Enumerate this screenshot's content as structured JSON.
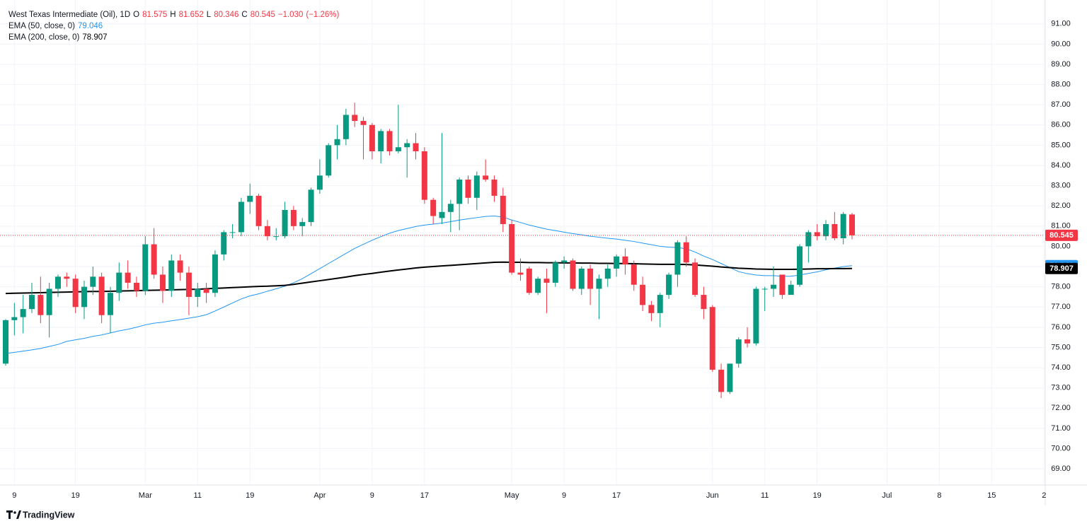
{
  "header": {
    "name": "West Texas Intermediate (Oil), 1D",
    "fields": [
      "O",
      "H",
      "L",
      "C"
    ],
    "change": {
      "value": -1.03,
      "label": "−1.030"
    },
    "change_pct": {
      "value": -1.26,
      "label": "(−1.26%)"
    }
  },
  "branding": "TradingView",
  "chart_data": {
    "type": "candlestick",
    "categories": [
      null,
      "9",
      null,
      null,
      null,
      null,
      null,
      null,
      "19",
      null,
      null,
      null,
      null,
      null,
      null,
      null,
      "Mar",
      null,
      null,
      null,
      null,
      null,
      "11",
      null,
      null,
      null,
      null,
      null,
      "19",
      null,
      null,
      null,
      null,
      null,
      null,
      null,
      "Apr",
      null,
      null,
      null,
      null,
      null,
      "9",
      null,
      null,
      null,
      null,
      null,
      "17",
      null,
      null,
      null,
      null,
      null,
      null,
      null,
      null,
      null,
      "May",
      null,
      null,
      null,
      null,
      null,
      "9",
      null,
      null,
      null,
      null,
      null,
      "17",
      null,
      null,
      null,
      null,
      null,
      null,
      null,
      null,
      null,
      null,
      "Jun",
      null,
      null,
      null,
      null,
      null,
      "11",
      null,
      null,
      null,
      null,
      null,
      "19",
      null,
      null,
      null,
      null,
      null,
      null,
      null,
      "Jul",
      null,
      null,
      null,
      null,
      null,
      "8",
      null,
      null,
      null,
      null,
      null,
      "15",
      null,
      null,
      null,
      null,
      null,
      "2"
    ],
    "open": [
      74.2,
      76.35,
      76.5,
      76.9,
      77.6,
      76.6,
      77.9,
      78.5,
      78.4,
      77.0,
      78.0,
      78.5,
      76.6,
      77.7,
      78.7,
      78.2,
      77.8,
      80.1,
      78.6,
      77.8,
      79.3,
      78.7,
      77.5,
      77.9,
      77.7,
      79.6,
      80.7,
      80.7,
      82.2,
      82.5,
      81.0,
      80.5,
      80.5,
      81.8,
      81.0,
      81.2,
      82.8,
      83.5,
      85.0,
      85.3,
      86.5,
      86.2,
      86.0,
      84.7,
      85.7,
      84.7,
      84.9,
      85.1,
      84.7,
      82.3,
      81.4,
      81.7,
      82.1,
      83.3,
      82.4,
      83.5,
      83.3,
      82.5,
      81.1,
      78.7,
      78.9,
      77.7,
      78.4,
      78.2,
      79.2,
      79.3,
      77.9,
      78.9,
      77.9,
      78.4,
      78.9,
      79.5,
      79.1,
      78.1,
      77.1,
      76.7,
      77.6,
      78.6,
      80.2,
      79.2,
      77.6,
      77.0,
      73.9,
      72.8,
      74.2,
      75.4,
      75.2,
      77.9,
      77.9,
      78.6,
      77.6,
      78.1,
      80.0,
      80.7,
      80.5,
      81.1,
      80.4,
      81.575,
      null,
      null,
      null,
      null,
      null,
      null,
      null,
      null,
      null,
      null,
      null,
      null,
      null,
      null,
      null,
      null,
      null,
      null,
      null,
      null,
      null,
      null
    ],
    "high": [
      76.4,
      77.2,
      77.6,
      78.2,
      78.5,
      78.2,
      78.6,
      78.7,
      78.6,
      78.3,
      79.0,
      78.7,
      78.0,
      79.2,
      79.3,
      78.5,
      80.5,
      80.9,
      79.0,
      79.6,
      79.6,
      79.0,
      78.2,
      78.2,
      79.8,
      80.8,
      81.1,
      82.4,
      83.1,
      82.6,
      81.3,
      80.9,
      82.2,
      82.0,
      81.4,
      82.9,
      84.3,
      85.1,
      86.0,
      86.8,
      87.1,
      86.4,
      86.1,
      85.8,
      85.8,
      87.0,
      85.3,
      85.6,
      84.9,
      82.4,
      85.6,
      82.3,
      83.4,
      83.5,
      83.7,
      84.3,
      83.5,
      82.9,
      81.3,
      79.4,
      79.0,
      78.5,
      78.9,
      79.3,
      79.5,
      79.4,
      79.0,
      79.1,
      78.6,
      79.1,
      79.6,
      79.9,
      79.3,
      78.5,
      77.3,
      77.7,
      78.7,
      80.3,
      80.5,
      79.4,
      78.0,
      77.1,
      74.2,
      74.2,
      75.5,
      76.0,
      78.0,
      78.0,
      79.0,
      78.6,
      78.3,
      80.1,
      80.8,
      81.1,
      81.3,
      81.7,
      81.7,
      81.652,
      null,
      null,
      null,
      null,
      null,
      null,
      null,
      null,
      null,
      null,
      null,
      null,
      null,
      null,
      null,
      null,
      null,
      null,
      null,
      null,
      null,
      null
    ],
    "low": [
      74.1,
      75.6,
      75.7,
      76.7,
      76.2,
      75.5,
      77.5,
      78.0,
      76.7,
      76.4,
      77.6,
      76.2,
      75.7,
      77.3,
      77.9,
      77.5,
      77.6,
      78.4,
      77.2,
      77.5,
      78.3,
      76.6,
      77.0,
      77.2,
      77.5,
      79.3,
      80.4,
      80.5,
      81.6,
      80.8,
      80.3,
      80.3,
      80.4,
      80.8,
      80.5,
      81.0,
      82.6,
      83.4,
      84.3,
      85.0,
      85.9,
      84.3,
      84.3,
      84.1,
      84.5,
      84.6,
      83.4,
      84.3,
      82.1,
      81.1,
      81.1,
      80.7,
      80.8,
      82.1,
      81.8,
      83.2,
      82.2,
      80.7,
      78.6,
      78.3,
      77.6,
      77.6,
      76.7,
      78.0,
      78.9,
      77.8,
      77.6,
      77.1,
      76.4,
      78.0,
      78.5,
      78.6,
      77.8,
      76.8,
      76.3,
      76.0,
      77.4,
      78.0,
      79.0,
      77.5,
      76.4,
      73.8,
      72.5,
      72.7,
      74.0,
      75.0,
      75.1,
      76.8,
      77.5,
      77.4,
      77.6,
      78.0,
      79.2,
      80.3,
      80.3,
      80.3,
      80.1,
      80.346,
      null,
      null,
      null,
      null,
      null,
      null,
      null,
      null,
      null,
      null,
      null,
      null,
      null,
      null,
      null,
      null,
      null,
      null,
      null,
      null,
      null,
      null
    ],
    "close": [
      76.35,
      76.5,
      76.9,
      77.6,
      76.6,
      77.9,
      78.5,
      78.4,
      77.0,
      78.0,
      78.5,
      76.6,
      77.7,
      78.7,
      78.2,
      77.8,
      80.1,
      78.6,
      77.8,
      79.3,
      78.7,
      77.5,
      77.9,
      77.7,
      79.6,
      80.7,
      80.7,
      82.2,
      82.5,
      81.0,
      80.5,
      80.5,
      81.8,
      81.0,
      81.2,
      82.8,
      83.5,
      85.0,
      85.3,
      86.5,
      86.2,
      86.0,
      84.7,
      85.7,
      84.7,
      84.9,
      85.1,
      84.7,
      82.3,
      81.5,
      81.7,
      82.1,
      83.3,
      82.4,
      83.5,
      83.3,
      82.5,
      81.1,
      78.7,
      78.6,
      77.7,
      78.4,
      78.2,
      79.2,
      79.3,
      77.9,
      78.9,
      77.9,
      78.4,
      78.9,
      79.5,
      79.1,
      78.1,
      77.1,
      76.7,
      77.6,
      78.6,
      80.2,
      79.2,
      77.6,
      76.9,
      73.9,
      72.8,
      74.2,
      75.4,
      75.2,
      77.9,
      77.9,
      78.1,
      77.6,
      78.1,
      80.0,
      80.7,
      80.5,
      81.1,
      80.4,
      81.6,
      80.545,
      null,
      null,
      null,
      null,
      null,
      null,
      null,
      null,
      null,
      null,
      null,
      null,
      null,
      null,
      null,
      null,
      null,
      null,
      null,
      null,
      null,
      null
    ],
    "up_color": "#089981",
    "down_color": "#f23645",
    "series": [
      {
        "name": "EMA (50, close, 0)",
        "color": "#2196f3",
        "values": [
          74.7,
          74.76,
          74.82,
          74.88,
          74.95,
          75.05,
          75.15,
          75.3,
          75.38,
          75.45,
          75.55,
          75.62,
          75.72,
          75.82,
          75.9,
          76.0,
          76.12,
          76.2,
          76.25,
          76.32,
          76.38,
          76.45,
          76.52,
          76.62,
          76.8,
          77.0,
          77.2,
          77.4,
          77.55,
          77.65,
          77.78,
          77.9,
          78.03,
          78.2,
          78.4,
          78.65,
          78.9,
          79.15,
          79.4,
          79.65,
          79.9,
          80.1,
          80.3,
          80.48,
          80.65,
          80.78,
          80.88,
          80.98,
          81.05,
          81.1,
          81.15,
          81.22,
          81.3,
          81.36,
          81.42,
          81.48,
          81.5,
          81.45,
          81.3,
          81.18,
          81.05,
          80.95,
          80.85,
          80.78,
          80.7,
          80.63,
          80.57,
          80.5,
          80.45,
          80.4,
          80.36,
          80.3,
          80.24,
          80.16,
          80.08,
          80.0,
          79.96,
          79.94,
          79.88,
          79.72,
          79.52,
          79.35,
          79.15,
          78.95,
          78.75,
          78.65,
          78.58,
          78.55,
          78.55,
          78.52,
          78.52,
          78.58,
          78.66,
          78.74,
          78.84,
          78.92,
          79.0,
          79.046,
          null,
          null,
          null,
          null,
          null,
          null,
          null,
          null,
          null,
          null,
          null,
          null,
          null,
          null,
          null,
          null,
          null,
          null,
          null,
          null,
          null,
          null
        ]
      },
      {
        "name": "EMA (200, close, 0)",
        "color": "#000000",
        "values": [
          77.67,
          77.68,
          77.69,
          77.7,
          77.71,
          77.72,
          77.73,
          77.74,
          77.75,
          77.76,
          77.77,
          77.77,
          77.78,
          77.79,
          77.8,
          77.81,
          77.82,
          77.83,
          77.84,
          77.85,
          77.86,
          77.87,
          77.88,
          77.9,
          77.92,
          77.94,
          77.96,
          77.98,
          78.0,
          78.02,
          78.03,
          78.05,
          78.07,
          78.12,
          78.18,
          78.24,
          78.3,
          78.36,
          78.42,
          78.48,
          78.55,
          78.61,
          78.66,
          78.72,
          78.78,
          78.83,
          78.88,
          78.93,
          78.97,
          79.0,
          79.03,
          79.06,
          79.09,
          79.12,
          79.15,
          79.18,
          79.21,
          79.22,
          79.21,
          79.21,
          79.2,
          79.2,
          79.19,
          79.19,
          79.18,
          79.18,
          79.17,
          79.17,
          79.16,
          79.16,
          79.15,
          79.15,
          79.14,
          79.13,
          79.12,
          79.11,
          79.11,
          79.11,
          79.1,
          79.08,
          79.05,
          79.02,
          78.98,
          78.95,
          78.92,
          78.9,
          78.88,
          78.87,
          78.86,
          78.86,
          78.86,
          78.87,
          78.88,
          78.89,
          78.89,
          78.9,
          78.9,
          78.907,
          null,
          null,
          null,
          null,
          null,
          null,
          null,
          null,
          null,
          null,
          null,
          null,
          null,
          null,
          null,
          null,
          null,
          null,
          null,
          null,
          null,
          null
        ]
      }
    ],
    "ylim": [
      68.2,
      91.9
    ],
    "yticks": [
      {
        "value": 69,
        "label": "69.00"
      },
      {
        "value": 70,
        "label": "70.00"
      },
      {
        "value": 71,
        "label": "71.00"
      },
      {
        "value": 72,
        "label": "72.00"
      },
      {
        "value": 73,
        "label": "73.00"
      },
      {
        "value": 74,
        "label": "74.00"
      },
      {
        "value": 75,
        "label": "75.00"
      },
      {
        "value": 76,
        "label": "76.00"
      },
      {
        "value": 77,
        "label": "77.00"
      },
      {
        "value": 78,
        "label": "78.00"
      },
      {
        "value": 79,
        "label": "79.00"
      },
      {
        "value": 80,
        "label": "80.00"
      },
      {
        "value": 81,
        "label": "81.00"
      },
      {
        "value": 82,
        "label": "82.00"
      },
      {
        "value": 83,
        "label": "83.00"
      },
      {
        "value": 84,
        "label": "84.00"
      },
      {
        "value": 85,
        "label": "85.00"
      },
      {
        "value": 86,
        "label": "86.00"
      },
      {
        "value": 87,
        "label": "87.00"
      },
      {
        "value": 88,
        "label": "88.00"
      },
      {
        "value": 89,
        "label": "89.00"
      },
      {
        "value": 90,
        "label": "90.00"
      },
      {
        "value": 91,
        "label": "91.00"
      }
    ],
    "grid": true,
    "last_price_line": true
  }
}
